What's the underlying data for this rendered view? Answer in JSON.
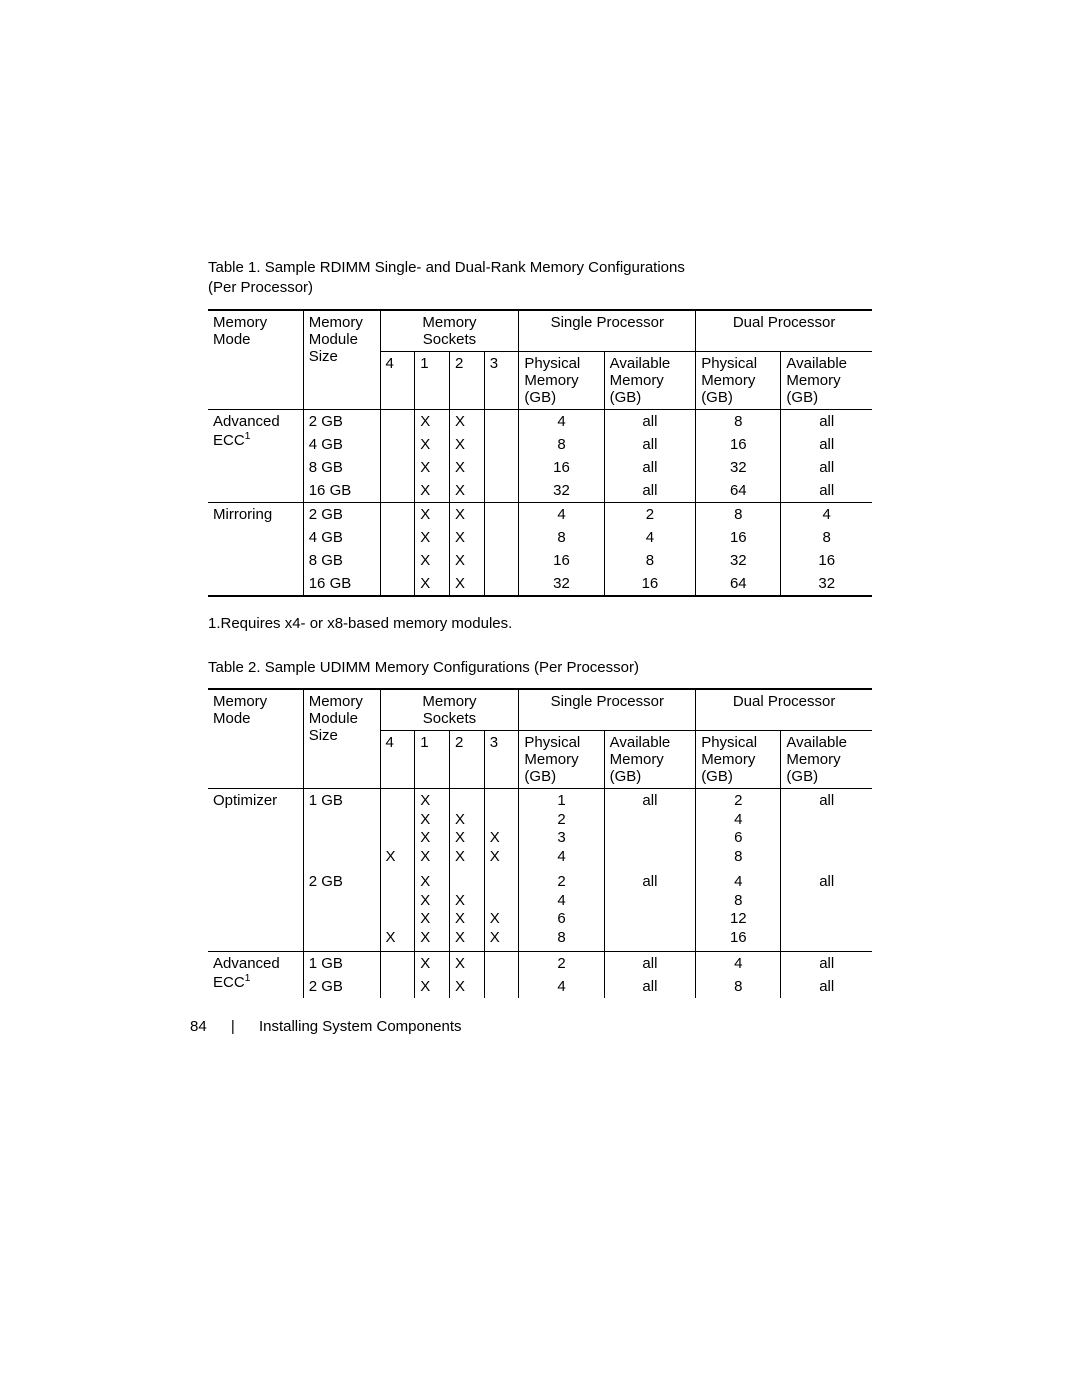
{
  "caption1_line1": "Table 1.    Sample RDIMM Single- and Dual-Rank Memory Configurations",
  "caption1_line2": "(Per Processor)",
  "caption2": "Table 2.    Sample UDIMM Memory Configurations (Per Processor)",
  "footnote1": "1.Requires x4- or x8-based memory modules.",
  "page_number": "84",
  "page_section": "Installing System Components",
  "hdr": {
    "memory_mode": "Memory Mode",
    "module_size": "Memory Module Size",
    "sockets": "Memory Sockets",
    "single_proc": "Single Processor",
    "dual_proc": "Dual Processor",
    "phys_mem": "Physical Memory (GB)",
    "avail_mem": "Available Memory (GB)",
    "s4": "4",
    "s1": "1",
    "s2": "2",
    "s3": "3"
  },
  "table1": {
    "groups": [
      {
        "mode_html": "Advanced ECC<sup>1</sup>",
        "rows": [
          {
            "size": "2 GB",
            "s4": "",
            "s1": "X",
            "s2": "X",
            "s3": "",
            "sp": "4",
            "sa": "all",
            "dp": "8",
            "da": "all"
          },
          {
            "size": "4 GB",
            "s4": "",
            "s1": "X",
            "s2": "X",
            "s3": "",
            "sp": "8",
            "sa": "all",
            "dp": "16",
            "da": "all"
          },
          {
            "size": "8 GB",
            "s4": "",
            "s1": "X",
            "s2": "X",
            "s3": "",
            "sp": "16",
            "sa": "all",
            "dp": "32",
            "da": "all"
          },
          {
            "size": "16 GB",
            "s4": "",
            "s1": "X",
            "s2": "X",
            "s3": "",
            "sp": "32",
            "sa": "all",
            "dp": "64",
            "da": "all"
          }
        ]
      },
      {
        "mode_html": "Mirroring",
        "rows": [
          {
            "size": "2 GB",
            "s4": "",
            "s1": "X",
            "s2": "X",
            "s3": "",
            "sp": "4",
            "sa": "2",
            "dp": "8",
            "da": "4"
          },
          {
            "size": "4 GB",
            "s4": "",
            "s1": "X",
            "s2": "X",
            "s3": "",
            "sp": "8",
            "sa": "4",
            "dp": "16",
            "da": "8"
          },
          {
            "size": "8 GB",
            "s4": "",
            "s1": "X",
            "s2": "X",
            "s3": "",
            "sp": "16",
            "sa": "8",
            "dp": "32",
            "da": "16"
          },
          {
            "size": "16 GB",
            "s4": "",
            "s1": "X",
            "s2": "X",
            "s3": "",
            "sp": "32",
            "sa": "16",
            "dp": "64",
            "da": "32"
          }
        ]
      }
    ]
  },
  "table2": {
    "groups": [
      {
        "mode_html": "Optimizer",
        "rows": [
          {
            "size": "1 GB",
            "s4_lines": [
              "",
              "",
              "",
              "X"
            ],
            "s1_lines": [
              "X",
              "X",
              "X",
              "X"
            ],
            "s2_lines": [
              "",
              "X",
              "X",
              "X"
            ],
            "s3_lines": [
              "",
              "",
              "X",
              "X"
            ],
            "sp_lines": [
              "1",
              "2",
              "3",
              "4"
            ],
            "sa_lines": [
              "all"
            ],
            "dp_lines": [
              "2",
              "4",
              "6",
              "8"
            ],
            "da_lines": [
              "all"
            ]
          },
          {
            "size": "2 GB",
            "s4_lines": [
              "",
              "",
              "",
              "X"
            ],
            "s1_lines": [
              "X",
              "X",
              "X",
              "X"
            ],
            "s2_lines": [
              "",
              "X",
              "X",
              "X"
            ],
            "s3_lines": [
              "",
              "",
              "X",
              "X"
            ],
            "sp_lines": [
              "2",
              "4",
              "6",
              "8"
            ],
            "sa_lines": [
              "all"
            ],
            "dp_lines": [
              "4",
              "8",
              "12",
              "16"
            ],
            "da_lines": [
              "all"
            ]
          }
        ]
      },
      {
        "mode_html": "Advanced ECC<sup>1</sup>",
        "rows": [
          {
            "size": "1 GB",
            "s4": "",
            "s1": "X",
            "s2": "X",
            "s3": "",
            "sp": "2",
            "sa": "all",
            "dp": "4",
            "da": "all"
          },
          {
            "size": "2 GB",
            "s4": "",
            "s1": "X",
            "s2": "X",
            "s3": "",
            "sp": "4",
            "sa": "all",
            "dp": "8",
            "da": "all"
          }
        ]
      }
    ]
  }
}
